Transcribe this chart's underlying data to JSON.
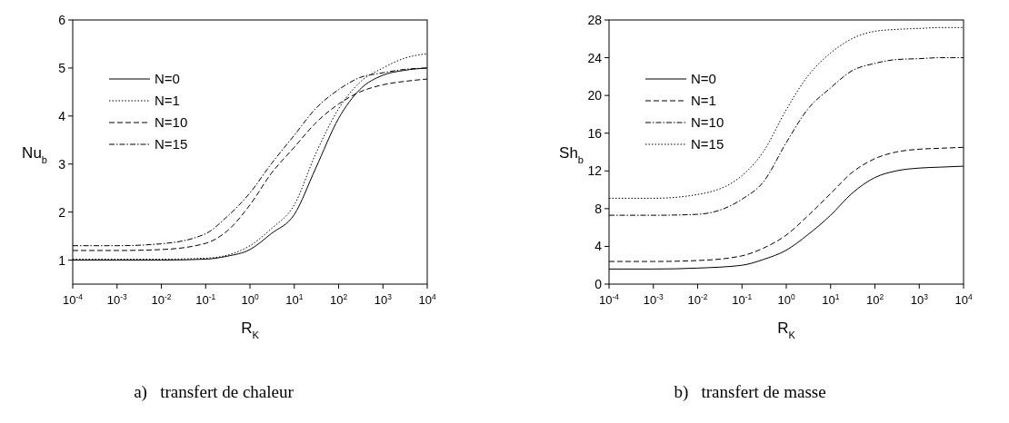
{
  "chart_data": [
    {
      "type": "line",
      "xlabel": "R$_{K}$",
      "ylabel": "Nu$_{b}$",
      "annotations": [
        "a)   transfert de chaleur"
      ],
      "log": "x",
      "xlim": [
        0.0001,
        10000
      ],
      "ylim": [
        0.5,
        6
      ],
      "xticks": [
        {
          "value": 0.0001,
          "label": "10$^{-4}$"
        },
        {
          "value": 0.001,
          "label": "10$^{-3}$"
        },
        {
          "value": 0.01,
          "label": "10$^{-2}$"
        },
        {
          "value": 0.1,
          "label": "10$^{-1}$"
        },
        {
          "value": 1,
          "label": "10$^{0}$"
        },
        {
          "value": 10,
          "label": "10$^{1}$"
        },
        {
          "value": 100,
          "label": "10$^{2}$"
        },
        {
          "value": 1000,
          "label": "10$^{3}$"
        },
        {
          "value": 10000,
          "label": "10$^{4}$"
        }
      ],
      "yticks": [
        1,
        2,
        3,
        4,
        5,
        6
      ],
      "legend": "top left",
      "marker": "none",
      "grid": false,
      "x": [
        0.0001,
        0.001,
        0.01,
        0.1,
        0.3,
        1,
        3,
        10,
        30,
        100,
        300,
        1000,
        3000,
        10000
      ],
      "series": [
        {
          "name": "N=0",
          "color": "#000000",
          "line_style": "solid",
          "values": [
            1.0,
            1.0,
            1.0,
            1.02,
            1.08,
            1.22,
            1.55,
            1.95,
            2.9,
            3.95,
            4.55,
            4.85,
            4.95,
            5.0
          ]
        },
        {
          "name": "N=1",
          "color": "#000000",
          "line_style": "dotted",
          "values": [
            1.02,
            1.02,
            1.02,
            1.04,
            1.1,
            1.3,
            1.65,
            2.15,
            3.2,
            4.15,
            4.7,
            5.0,
            5.2,
            5.3
          ]
        },
        {
          "name": "N=10",
          "color": "#000000",
          "line_style": "dashed",
          "values": [
            1.2,
            1.2,
            1.22,
            1.35,
            1.6,
            2.15,
            2.8,
            3.35,
            3.85,
            4.25,
            4.5,
            4.65,
            4.72,
            4.77
          ]
        },
        {
          "name": "N=15",
          "color": "#000000",
          "line_style": "dashdot",
          "values": [
            1.3,
            1.3,
            1.34,
            1.55,
            1.9,
            2.4,
            3.0,
            3.6,
            4.15,
            4.55,
            4.8,
            4.9,
            4.97,
            5.0
          ]
        }
      ]
    },
    {
      "type": "line",
      "xlabel": "R$_{K}$",
      "ylabel": "Sh$_{b}$",
      "annotations": [
        "b)   transfert de masse"
      ],
      "log": "x",
      "xlim": [
        0.0001,
        10000
      ],
      "ylim": [
        0,
        28
      ],
      "xticks": [
        {
          "value": 0.0001,
          "label": "10$^{-4}$"
        },
        {
          "value": 0.001,
          "label": "10$^{-3}$"
        },
        {
          "value": 0.01,
          "label": "10$^{-2}$"
        },
        {
          "value": 0.1,
          "label": "10$^{-1}$"
        },
        {
          "value": 1,
          "label": "10$^{0}$"
        },
        {
          "value": 10,
          "label": "10$^{1}$"
        },
        {
          "value": 100,
          "label": "10$^{2}$"
        },
        {
          "value": 1000,
          "label": "10$^{3}$"
        },
        {
          "value": 10000,
          "label": "10$^{4}$"
        }
      ],
      "yticks": [
        0,
        4,
        8,
        12,
        16,
        20,
        24,
        28
      ],
      "legend": "top left",
      "marker": "none",
      "grid": false,
      "x": [
        0.0001,
        0.001,
        0.01,
        0.1,
        0.3,
        1,
        3,
        10,
        30,
        100,
        300,
        1000,
        3000,
        10000
      ],
      "series": [
        {
          "name": "N=0",
          "color": "#000000",
          "line_style": "solid",
          "values": [
            1.6,
            1.6,
            1.7,
            2.0,
            2.6,
            3.6,
            5.2,
            7.3,
            9.6,
            11.3,
            12.0,
            12.3,
            12.4,
            12.5
          ]
        },
        {
          "name": "N=1",
          "color": "#000000",
          "line_style": "dashed",
          "values": [
            2.4,
            2.4,
            2.5,
            3.0,
            3.8,
            5.2,
            7.2,
            9.6,
            11.8,
            13.3,
            14.0,
            14.3,
            14.4,
            14.5
          ]
        },
        {
          "name": "N=10",
          "color": "#000000",
          "line_style": "dashdot",
          "values": [
            7.3,
            7.3,
            7.4,
            9.0,
            10.8,
            15.0,
            18.5,
            20.8,
            22.6,
            23.4,
            23.8,
            23.9,
            24.0,
            24.0
          ]
        },
        {
          "name": "N=15",
          "color": "#000000",
          "line_style": "dotted",
          "values": [
            9.1,
            9.1,
            9.5,
            11.5,
            14.0,
            18.5,
            22.0,
            24.5,
            26.0,
            26.8,
            27.0,
            27.1,
            27.2,
            27.2
          ]
        }
      ]
    }
  ]
}
